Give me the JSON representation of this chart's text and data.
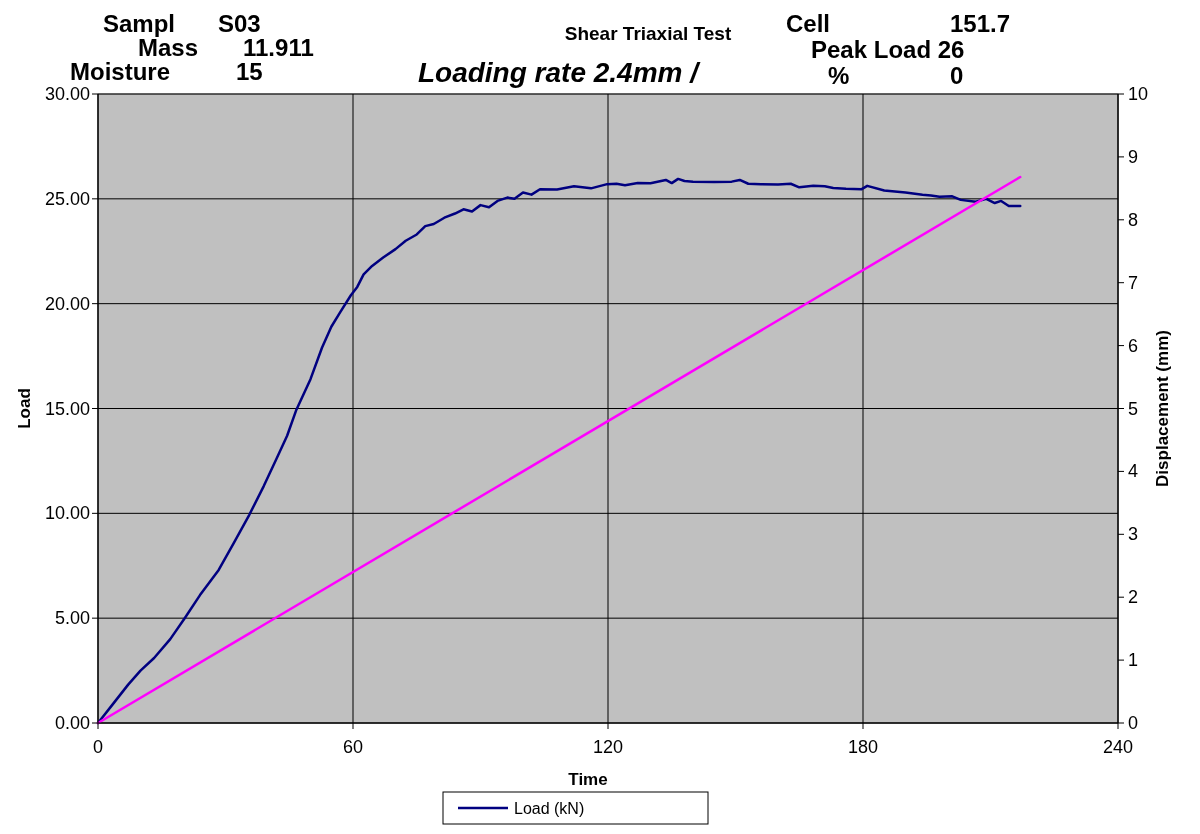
{
  "chart_data": {
    "type": "line",
    "title": "Shear Triaxial Test",
    "subtitle": "Loading rate 2.4mm /",
    "xlabel": "Time",
    "ylabel": "Load",
    "y2label": "Displacement (mm)",
    "annotations": [
      "Sampl",
      "S03",
      "Mass",
      "11.911",
      "Moisture",
      "15",
      "Cell",
      "151.7",
      "Peak Load 26",
      "%",
      "0"
    ],
    "xlim": [
      0,
      240
    ],
    "xticks": [
      0,
      60,
      120,
      180,
      240
    ],
    "ylim": [
      0,
      30
    ],
    "yticks": [
      {
        "value": 0,
        "label": "0.00"
      },
      {
        "value": 5,
        "label": "5.00"
      },
      {
        "value": 10,
        "label": "10.00"
      },
      {
        "value": 15,
        "label": "15.00"
      },
      {
        "value": 20,
        "label": "20.00"
      },
      {
        "value": 25,
        "label": "25.00"
      },
      {
        "value": 30,
        "label": "30.00"
      }
    ],
    "y2lim": [
      0,
      10
    ],
    "y2ticks": [
      0,
      1,
      2,
      3,
      4,
      5,
      6,
      7,
      8,
      9,
      10
    ],
    "grid": true,
    "legend": "bottom",
    "line_style": "solid",
    "series": [
      {
        "name": "Load (kN)",
        "color": "#000080",
        "x": [
          0,
          3.5,
          7.1,
          10,
          13.2,
          17,
          20.4,
          24,
          28.4,
          32,
          35.6,
          39,
          42,
          44.5,
          46.6,
          50,
          52.7,
          54.9,
          57,
          59.5,
          61,
          62.5,
          64.5,
          67.1,
          70,
          72.4,
          75,
          77,
          79,
          81.5,
          84,
          86,
          88,
          90,
          92,
          94,
          96.3,
          98,
          100,
          102,
          104,
          108,
          112,
          116,
          119.8,
          122,
          124,
          127,
          130,
          133.6,
          135,
          136.5,
          138,
          140,
          145,
          149.1,
          151,
          153,
          156,
          160,
          163,
          165,
          168.3,
          171,
          173,
          176,
          179.7,
          181,
          185,
          190,
          194,
          196,
          198,
          201,
          203,
          206.5,
          209,
          211,
          212.5,
          214.3,
          217
        ],
        "values": [
          0,
          0.9,
          1.83,
          2.5,
          3.1,
          4.0,
          5.0,
          6.1,
          7.3,
          8.6,
          9.93,
          11.3,
          12.6,
          13.7,
          14.9,
          16.4,
          17.9,
          18.9,
          19.6,
          20.4,
          20.8,
          21.4,
          21.8,
          22.2,
          22.6,
          23.0,
          23.3,
          23.7,
          23.8,
          24.1,
          24.3,
          24.5,
          24.4,
          24.7,
          24.6,
          24.9,
          25.06,
          25.0,
          25.3,
          25.2,
          25.46,
          25.45,
          25.6,
          25.5,
          25.7,
          25.72,
          25.65,
          25.75,
          25.74,
          25.9,
          25.75,
          25.95,
          25.85,
          25.82,
          25.8,
          25.82,
          25.9,
          25.72,
          25.7,
          25.68,
          25.72,
          25.55,
          25.62,
          25.6,
          25.52,
          25.48,
          25.46,
          25.62,
          25.4,
          25.3,
          25.2,
          25.16,
          25.1,
          25.12,
          24.95,
          24.86,
          25.0,
          24.8,
          24.9,
          24.66,
          24.66
        ]
      },
      {
        "color": "#ff00ff",
        "axis": "y2",
        "x": [
          0,
          217
        ],
        "values": [
          0,
          8.68
        ]
      }
    ]
  }
}
